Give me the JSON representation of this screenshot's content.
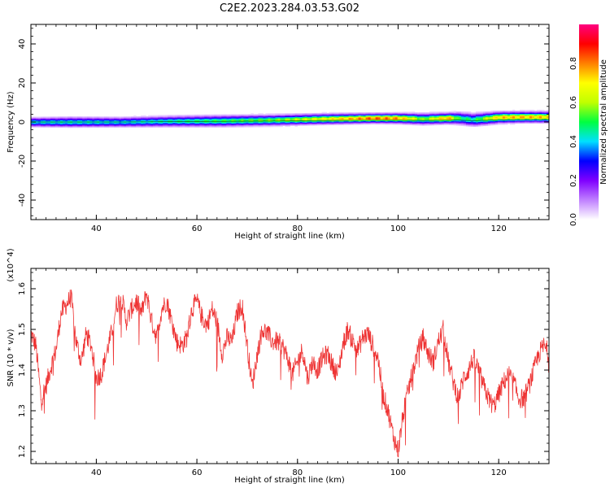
{
  "figure_title": "C2E2.2023.284.03.53.G02",
  "chart_data": [
    {
      "type": "heatmap",
      "xlabel": "Height of straight line (km)",
      "ylabel": "Frequency (Hz)",
      "xlim": [
        27,
        130
      ],
      "ylim": [
        -50,
        50
      ],
      "x_ticks": [
        40,
        60,
        80,
        100,
        120
      ],
      "y_ticks": [
        -40,
        -20,
        0,
        20,
        40
      ],
      "colorbar": {
        "label": "Normalized spectral amplitude",
        "range": [
          0,
          1
        ],
        "ticks": [
          "0.0",
          "0.2",
          "0.4",
          "0.6",
          "0.8"
        ],
        "tick_values": [
          0,
          0.2,
          0.4,
          0.6,
          0.8
        ],
        "colors": [
          "#ffffff",
          "#c080ff",
          "#8000ff",
          "#0000ff",
          "#00e0ff",
          "#00ff40",
          "#c0ff00",
          "#ffff00",
          "#ff8000",
          "#ff0000",
          "#ff0080"
        ]
      },
      "ridge": {
        "x": [
          27,
          35,
          45,
          55,
          65,
          75,
          85,
          95,
          100,
          105,
          110,
          112,
          115,
          120,
          125,
          130
        ],
        "center_hz": [
          0.0,
          0.0,
          0.0,
          0.2,
          0.3,
          0.5,
          0.8,
          1.0,
          1.0,
          0.8,
          1.0,
          1.0,
          0.6,
          1.2,
          1.3,
          1.3
        ],
        "halfwidth_hz": [
          2.2,
          2.4,
          2.3,
          2.5,
          2.6,
          2.5,
          2.4,
          2.2,
          2.3,
          2.6,
          2.4,
          2.8,
          3.0,
          2.6,
          2.5,
          2.5
        ],
        "peak": [
          0.45,
          0.48,
          0.45,
          0.5,
          0.55,
          0.6,
          0.72,
          0.9,
          0.85,
          0.6,
          0.85,
          0.55,
          0.5,
          0.8,
          0.82,
          0.8
        ]
      }
    },
    {
      "type": "line",
      "xlabel": "Height of straight line (km)",
      "ylabel": "SNR (10 * v/v)",
      "y_multiplier": "(x10^4)",
      "xlim": [
        27,
        130
      ],
      "ylim": [
        1.17,
        1.65
      ],
      "x_ticks": [
        40,
        60,
        80,
        100,
        120
      ],
      "y_ticks": [
        1.2,
        1.3,
        1.4,
        1.5,
        1.6
      ],
      "color": "#ee3333",
      "series": [
        {
          "x": [
            27,
            28,
            29,
            30,
            31,
            32,
            33,
            34,
            35,
            36,
            37,
            38,
            39,
            40,
            41,
            42,
            43,
            44,
            45,
            46,
            47,
            48,
            49,
            50,
            51,
            52,
            53,
            54,
            55,
            56,
            57,
            58,
            59,
            60,
            61,
            62,
            63,
            64,
            65,
            66,
            67,
            68,
            69,
            70,
            71,
            72,
            73,
            74,
            75,
            76,
            77,
            78,
            79,
            80,
            81,
            82,
            83,
            84,
            85,
            86,
            87,
            88,
            89,
            90,
            91,
            92,
            93,
            94,
            95,
            96,
            97,
            98,
            99,
            100,
            101,
            102,
            103,
            104,
            105,
            106,
            107,
            108,
            109,
            110,
            111,
            112,
            113,
            114,
            115,
            116,
            117,
            118,
            119,
            120,
            121,
            122,
            123,
            124,
            125,
            126,
            127,
            128,
            129,
            130
          ],
          "y": [
            1.49,
            1.46,
            1.33,
            1.36,
            1.41,
            1.45,
            1.54,
            1.56,
            1.58,
            1.47,
            1.42,
            1.49,
            1.46,
            1.38,
            1.39,
            1.44,
            1.49,
            1.56,
            1.58,
            1.52,
            1.55,
            1.57,
            1.54,
            1.59,
            1.52,
            1.48,
            1.55,
            1.57,
            1.52,
            1.47,
            1.46,
            1.48,
            1.55,
            1.57,
            1.53,
            1.51,
            1.55,
            1.52,
            1.44,
            1.48,
            1.47,
            1.54,
            1.56,
            1.46,
            1.36,
            1.44,
            1.5,
            1.49,
            1.47,
            1.47,
            1.46,
            1.43,
            1.39,
            1.42,
            1.45,
            1.38,
            1.42,
            1.4,
            1.43,
            1.44,
            1.41,
            1.39,
            1.46,
            1.5,
            1.47,
            1.45,
            1.48,
            1.49,
            1.46,
            1.43,
            1.34,
            1.3,
            1.24,
            1.2,
            1.29,
            1.35,
            1.4,
            1.45,
            1.48,
            1.44,
            1.42,
            1.47,
            1.5,
            1.42,
            1.37,
            1.33,
            1.38,
            1.4,
            1.43,
            1.4,
            1.36,
            1.33,
            1.31,
            1.34,
            1.37,
            1.39,
            1.37,
            1.33,
            1.33,
            1.36,
            1.4,
            1.44,
            1.46,
            1.44
          ]
        }
      ]
    }
  ]
}
